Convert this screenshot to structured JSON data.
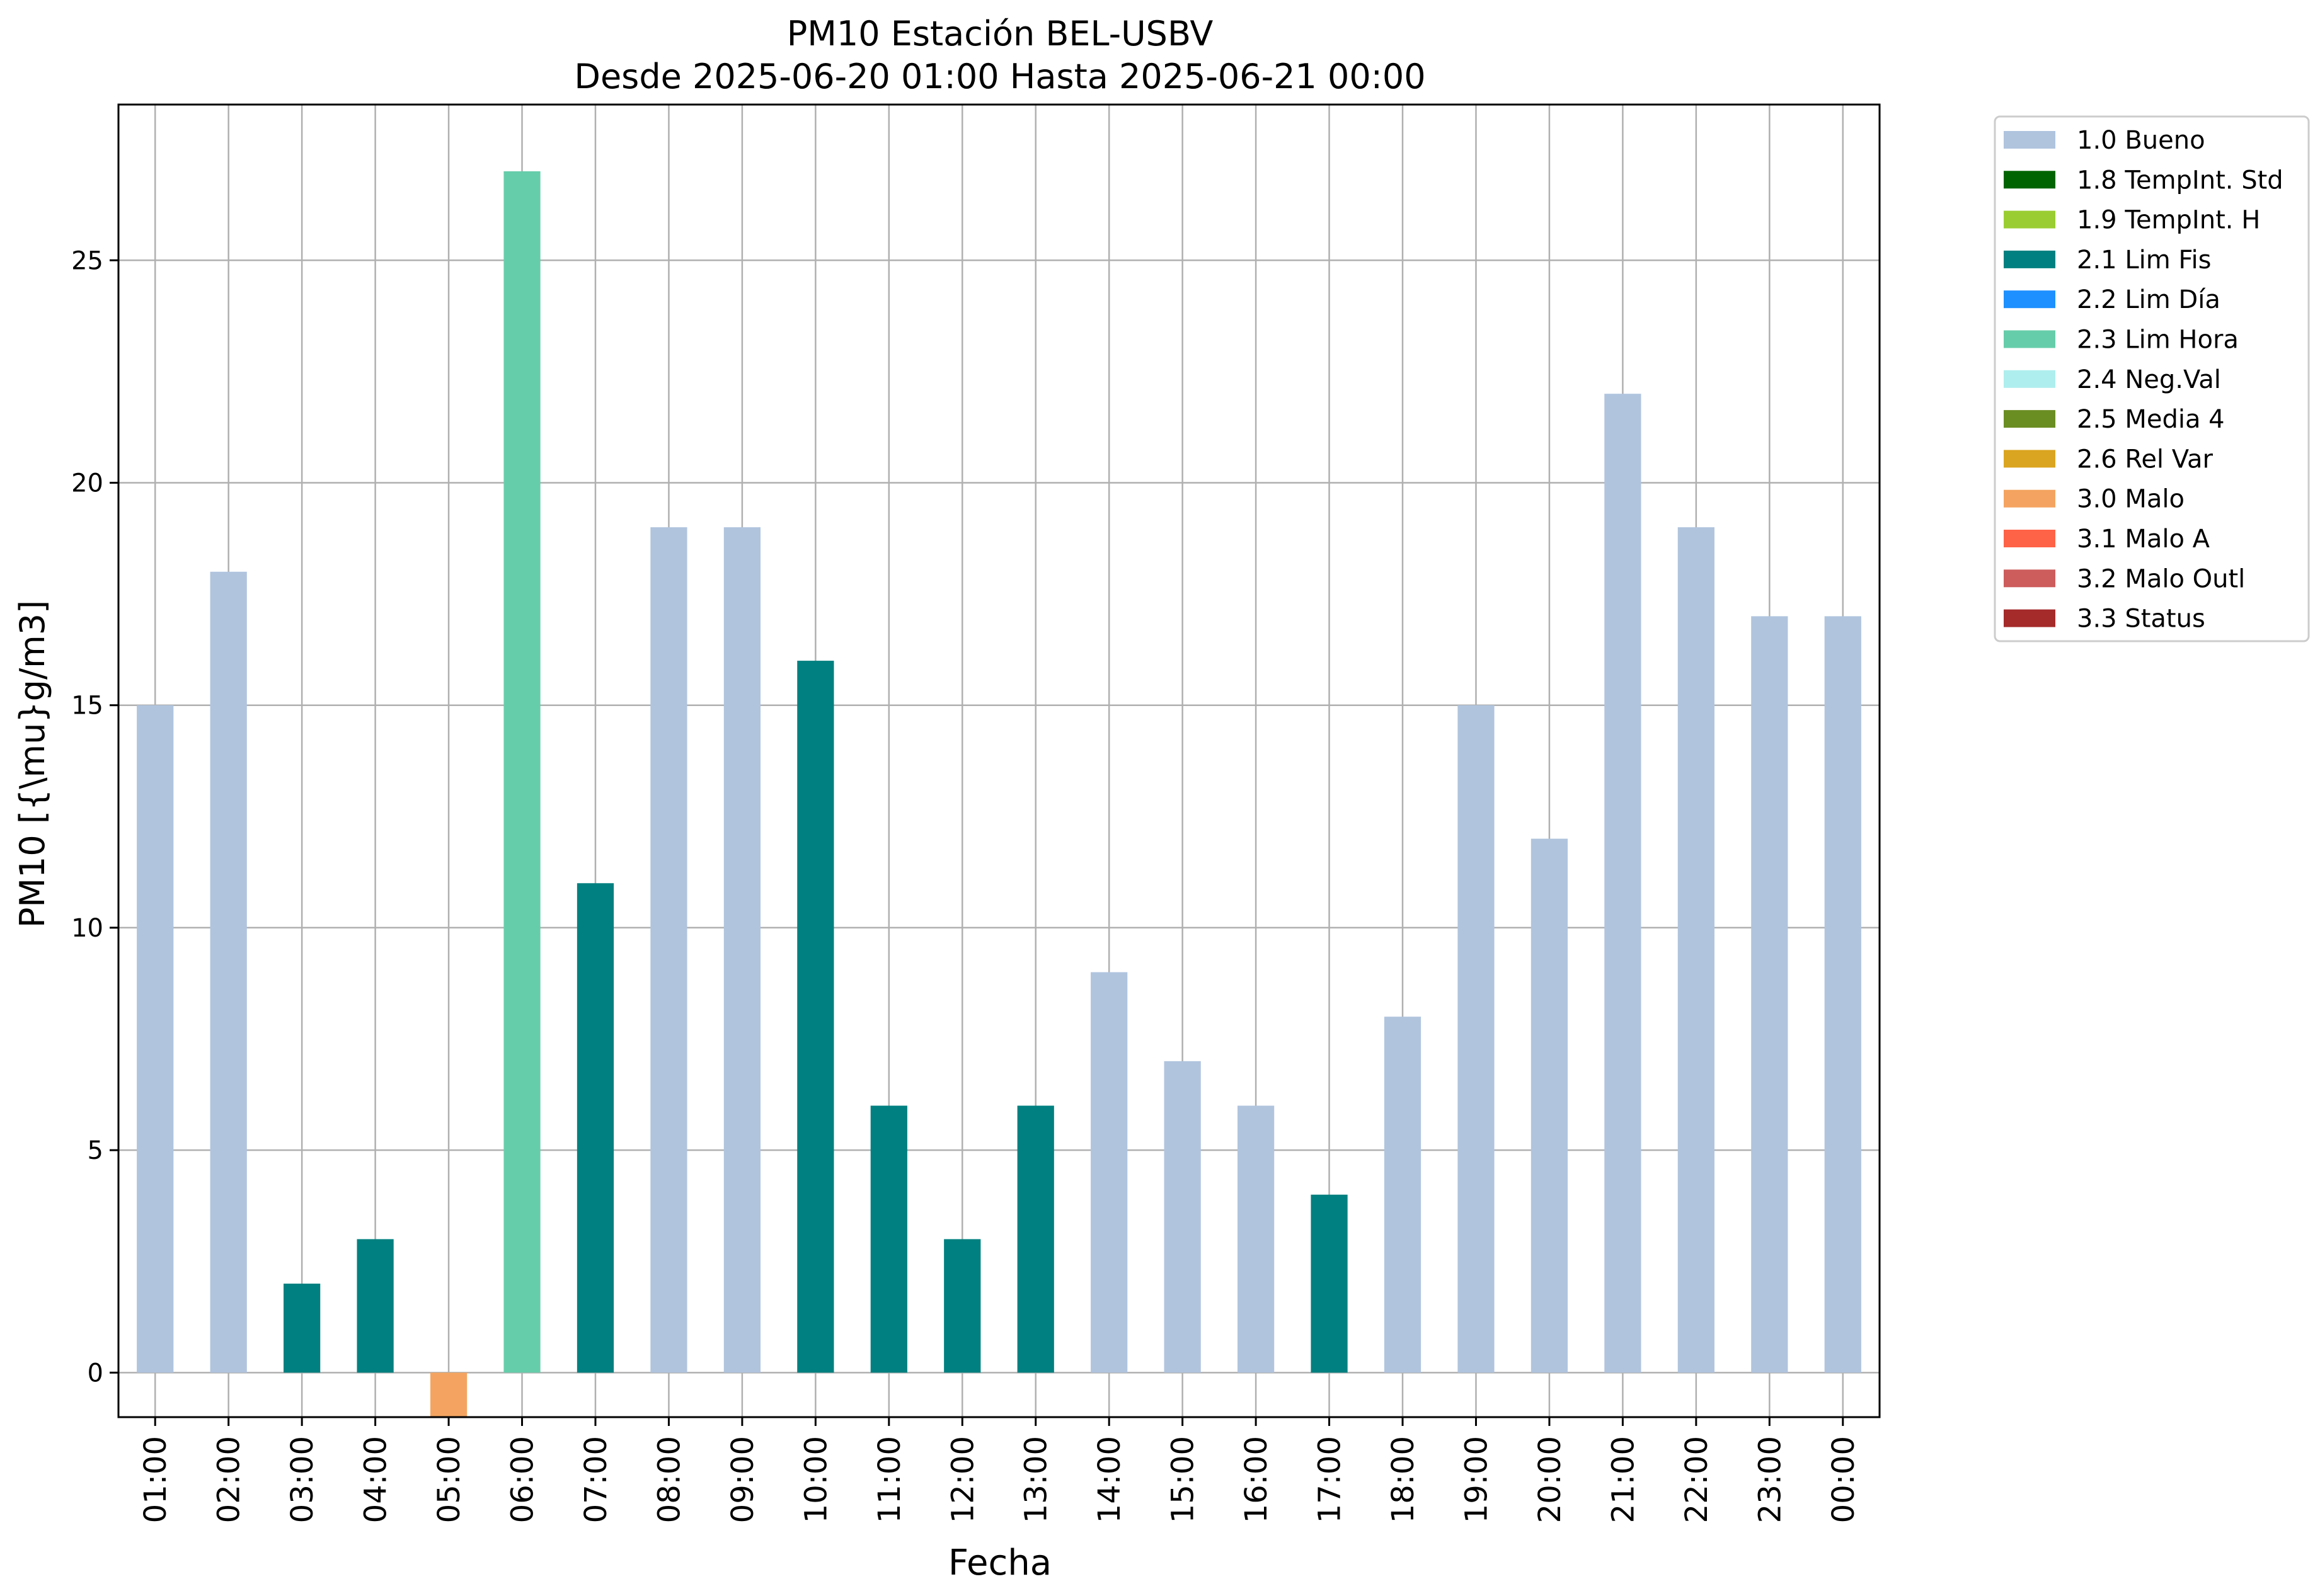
{
  "chart_data": {
    "type": "bar",
    "title": "PM10 Estación BEL-USBV",
    "subtitle": "Desde 2025-06-20 01:00 Hasta 2025-06-21 00:00",
    "xlabel": "Fecha",
    "ylabel": "PM10 [{\\mu}g/m3]",
    "ylim": [
      -1,
      28.5
    ],
    "yticks": [
      0,
      5,
      10,
      15,
      20,
      25
    ],
    "grid": true,
    "legend_position": "outside-right-top",
    "categories": [
      "01:00",
      "02:00",
      "03:00",
      "04:00",
      "05:00",
      "06:00",
      "07:00",
      "08:00",
      "09:00",
      "10:00",
      "11:00",
      "12:00",
      "13:00",
      "14:00",
      "15:00",
      "16:00",
      "17:00",
      "18:00",
      "19:00",
      "20:00",
      "21:00",
      "22:00",
      "23:00",
      "00:00"
    ],
    "values": [
      15,
      18,
      2,
      3,
      -1,
      27,
      11,
      19,
      19,
      16,
      6,
      3,
      6,
      9,
      7,
      6,
      4,
      8,
      15,
      12,
      22,
      19,
      17,
      17
    ],
    "flags": [
      "1.0 Bueno",
      "1.0 Bueno",
      "2.1 Lim Fis",
      "2.1 Lim Fis",
      "3.0 Malo",
      "2.3 Lim Hora",
      "2.1 Lim Fis",
      "1.0 Bueno",
      "1.0 Bueno",
      "2.1 Lim Fis",
      "2.1 Lim Fis",
      "2.1 Lim Fis",
      "2.1 Lim Fis",
      "1.0 Bueno",
      "1.0 Bueno",
      "1.0 Bueno",
      "2.1 Lim Fis",
      "1.0 Bueno",
      "1.0 Bueno",
      "1.0 Bueno",
      "1.0 Bueno",
      "1.0 Bueno",
      "1.0 Bueno",
      "1.0 Bueno"
    ],
    "legend": [
      {
        "label": "1.0 Bueno",
        "color": "#b0c4de"
      },
      {
        "label": "1.8 TempInt. Std",
        "color": "#006400"
      },
      {
        "label": "1.9 TempInt. H",
        "color": "#9acd32"
      },
      {
        "label": "2.1 Lim Fis",
        "color": "#008080"
      },
      {
        "label": "2.2 Lim Día",
        "color": "#1e90ff"
      },
      {
        "label": "2.3 Lim Hora",
        "color": "#66cdaa"
      },
      {
        "label": "2.4 Neg.Val",
        "color": "#afeeee"
      },
      {
        "label": "2.5 Media 4",
        "color": "#6b8e23"
      },
      {
        "label": "2.6 Rel Var",
        "color": "#daa520"
      },
      {
        "label": "3.0 Malo",
        "color": "#f4a460"
      },
      {
        "label": "3.1 Malo A",
        "color": "#ff6347"
      },
      {
        "label": "3.2 Malo Outl",
        "color": "#cd5c5c"
      },
      {
        "label": "3.3 Status",
        "color": "#a52a2a"
      }
    ]
  }
}
